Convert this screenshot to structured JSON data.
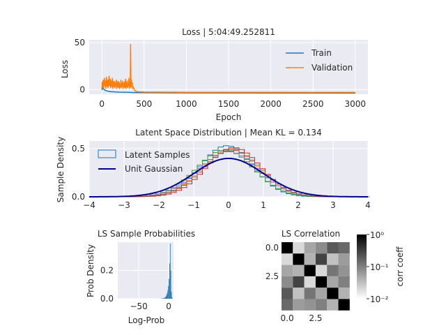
{
  "chart_data": [
    {
      "type": "line",
      "title": "Loss | 5:04:49.252811",
      "xlabel": "Epoch",
      "ylabel": "Loss",
      "xlim": [
        -150,
        3150
      ],
      "ylim": [
        -5,
        53
      ],
      "xticks": [
        0,
        500,
        1000,
        1500,
        2000,
        2500,
        3000
      ],
      "yticks": [
        0,
        50
      ],
      "grid": true,
      "legend_position": "top-right",
      "series": [
        {
          "name": "Train",
          "color": "#1f77b4",
          "x": [
            0,
            5,
            20,
            40,
            60,
            80,
            100,
            150,
            200,
            300,
            400,
            500,
            1000,
            2000,
            3000
          ],
          "y": [
            -0.5,
            2,
            0.5,
            -1.0,
            -1.5,
            -2.0,
            -2.2,
            -2.5,
            -2.8,
            -3.0,
            -3.2,
            -3.3,
            -3.5,
            -3.6,
            -3.7
          ]
        },
        {
          "name": "Validation",
          "color": "#ff7f0e",
          "x": [
            0,
            5,
            10,
            15,
            20,
            25,
            30,
            35,
            40,
            45,
            50,
            55,
            60,
            65,
            70,
            75,
            80,
            85,
            90,
            95,
            100,
            105,
            110,
            115,
            120,
            125,
            130,
            135,
            140,
            145,
            150,
            155,
            160,
            165,
            170,
            175,
            180,
            185,
            190,
            195,
            200,
            205,
            210,
            215,
            220,
            225,
            230,
            235,
            240,
            245,
            250,
            255,
            260,
            265,
            270,
            275,
            280,
            285,
            290,
            295,
            300,
            305,
            310,
            315,
            320,
            325,
            330,
            335,
            340,
            345,
            350,
            355,
            360,
            365,
            370,
            380,
            390,
            400,
            420,
            450,
            500,
            700,
            1000,
            1500,
            2000,
            2500,
            3000
          ],
          "y": [
            1,
            8,
            3,
            10,
            2,
            6,
            12,
            4,
            9,
            1,
            7,
            13,
            3,
            5,
            10,
            2,
            8,
            14,
            4,
            6,
            11,
            2,
            9,
            3,
            7,
            12,
            1,
            5,
            9,
            3,
            8,
            2,
            6,
            4,
            10,
            1,
            7,
            3,
            9,
            2,
            5,
            8,
            1,
            6,
            3,
            10,
            2,
            7,
            4,
            9,
            1,
            6,
            3,
            8,
            2,
            5,
            11,
            1,
            7,
            3,
            9,
            2,
            6,
            4,
            12,
            1,
            8,
            3,
            48,
            2,
            10,
            4,
            7,
            1,
            3,
            0.5,
            -1,
            -2,
            -2.3,
            -2.5,
            -2.7,
            -2.8,
            -2.9,
            -3.0,
            -3.0,
            -3.1,
            -3.1
          ]
        }
      ]
    },
    {
      "type": "area",
      "title": "Latent Space Distribution | Mean KL = 0.134",
      "xlabel": "",
      "ylabel": "Sample Density",
      "xlim": [
        -4,
        4
      ],
      "ylim": [
        0,
        0.58
      ],
      "xticks": [
        -4,
        -3,
        -2,
        -1,
        0,
        1,
        2,
        3,
        4
      ],
      "yticks": [
        0,
        0.5
      ],
      "ytick_labels": [
        "0.0",
        "0.5"
      ],
      "grid": true,
      "legend_position": "top-left",
      "legend": [
        "Latent Samples",
        "Unit Gaussian"
      ],
      "gaussian": {
        "name": "Unit Gaussian",
        "mean": 0,
        "std": 1,
        "color": "#00008b"
      },
      "histograms": [
        {
          "color": "#1f77b4",
          "peak_shift": -0.05,
          "peak_scale": 1.35,
          "width": 0.75
        },
        {
          "color": "#ff7f0e",
          "peak_shift": 0.05,
          "peak_scale": 1.25,
          "width": 0.8
        },
        {
          "color": "#2ca02c",
          "peak_shift": -0.1,
          "peak_scale": 1.2,
          "width": 0.82
        },
        {
          "color": "#d62728",
          "peak_shift": 0.15,
          "peak_scale": 1.3,
          "width": 0.78
        },
        {
          "color": "#9467bd",
          "peak_shift": 0.0,
          "peak_scale": 1.15,
          "width": 0.85
        },
        {
          "color": "#8c564b",
          "peak_shift": 0.1,
          "peak_scale": 1.2,
          "width": 0.82
        }
      ]
    },
    {
      "type": "bar",
      "title": "LS Sample Probabilities",
      "xlabel": "Log-Prob",
      "ylabel": "Prob Density",
      "xlim": [
        -85,
        8
      ],
      "ylim": [
        0,
        0.4
      ],
      "xticks": [
        -50,
        0
      ],
      "xtick_labels": [
        "−50",
        "0"
      ],
      "yticks": [
        0,
        0.2
      ],
      "ytick_labels": [
        "0.0",
        "0.2"
      ],
      "grid": true,
      "color": "#1f77b4",
      "bins_x": [
        -14,
        -13,
        -12,
        -11,
        -10,
        -9,
        -8,
        -7,
        -6,
        -5,
        -4,
        -3,
        -2,
        -1,
        0,
        1,
        2,
        3,
        4,
        5
      ],
      "bins_y": [
        0.001,
        0.001,
        0.002,
        0.002,
        0.003,
        0.004,
        0.006,
        0.008,
        0.012,
        0.018,
        0.026,
        0.04,
        0.06,
        0.09,
        0.14,
        0.25,
        0.39,
        0.2,
        0.05,
        0.01
      ]
    },
    {
      "type": "heatmap",
      "title": "LS Correlation",
      "xlabel": "",
      "ylabel": "",
      "xticks": [
        0,
        2.5
      ],
      "xtick_labels": [
        "0.0",
        "2.5"
      ],
      "yticks": [
        0,
        2.5
      ],
      "ytick_labels": [
        "0.0",
        "2.5"
      ],
      "colorbar_label": "corr coeff",
      "colorbar_ticks": [
        "10⁰",
        "10⁻¹",
        "10⁻²"
      ],
      "colorbar_scale": "log",
      "colorbar_range": [
        0.01,
        1
      ],
      "matrix": [
        [
          1.0,
          0.02,
          0.05,
          0.08,
          0.2,
          0.15
        ],
        [
          0.02,
          1.0,
          0.04,
          0.3,
          0.03,
          0.06
        ],
        [
          0.05,
          0.04,
          1.0,
          0.02,
          0.12,
          0.07
        ],
        [
          0.08,
          0.3,
          0.02,
          1.0,
          0.05,
          0.1
        ],
        [
          0.2,
          0.03,
          0.12,
          0.05,
          1.0,
          0.04
        ],
        [
          0.15,
          0.06,
          0.07,
          0.1,
          0.04,
          1.0
        ]
      ]
    }
  ]
}
